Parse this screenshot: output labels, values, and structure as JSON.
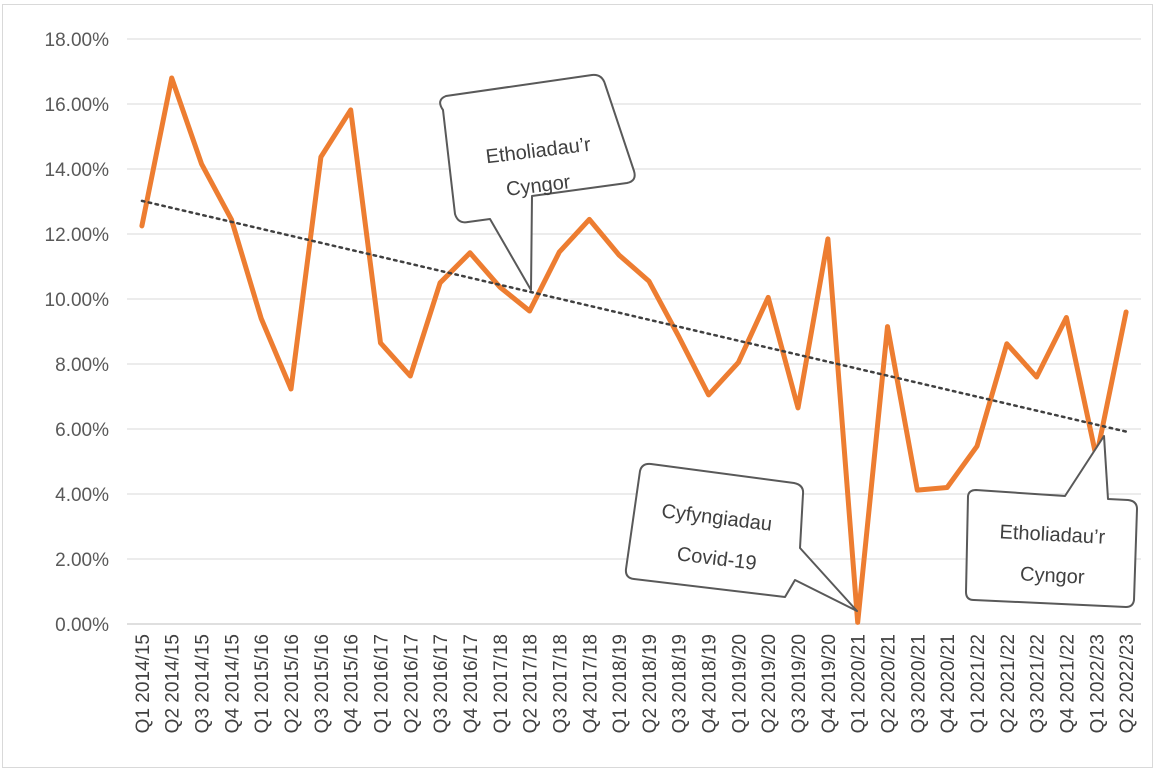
{
  "chart_data": {
    "type": "line",
    "title": "",
    "xlabel": "",
    "ylabel": "",
    "ylim": [
      0,
      0.18
    ],
    "yticks": [
      "0.00%",
      "2.00%",
      "4.00%",
      "6.00%",
      "8.00%",
      "10.00%",
      "12.00%",
      "14.00%",
      "16.00%",
      "18.00%"
    ],
    "grid": "horizontal",
    "legend": "none",
    "categories": [
      "Q1 2014/15",
      "Q2 2014/15",
      "Q3 2014/15",
      "Q4 2014/15",
      "Q1 2015/16",
      "Q2 2015/16",
      "Q3 2015/16",
      "Q4 2015/16",
      "Q1 2016/17",
      "Q2 2016/17",
      "Q3 2016/17",
      "Q4 2016/17",
      "Q1 2017/18",
      "Q2 2017/18",
      "Q3 2017/18",
      "Q4 2017/18",
      "Q1 2018/19",
      "Q2 2018/19",
      "Q3 2018/19",
      "Q4 2018/19",
      "Q1 2019/20",
      "Q2 2019/20",
      "Q3 2019/20",
      "Q4 2019/20",
      "Q1 2020/21",
      "Q2 2020/21",
      "Q3 2020/21",
      "Q4 2020/21",
      "Q1 2021/22",
      "Q2 2021/22",
      "Q3 2021/22",
      "Q4 2021/22",
      "Q1 2022/23",
      "Q2 2022/23"
    ],
    "series": [
      {
        "color": "#ed7d31",
        "values": [
          0.1225,
          0.168,
          0.1415,
          0.1245,
          0.094,
          0.0723,
          0.1437,
          0.1582,
          0.0865,
          0.0763,
          0.105,
          0.1142,
          0.1037,
          0.0963,
          0.1145,
          0.1245,
          0.1135,
          0.1055,
          0.0885,
          0.0705,
          0.0805,
          0.1005,
          0.0665,
          0.1185,
          0.0005,
          0.0915,
          0.0412,
          0.042,
          0.0547,
          0.0862,
          0.076,
          0.0943,
          0.0513,
          0.096
        ]
      }
    ],
    "trendline": {
      "type": "linear",
      "style": "dotted",
      "color": "#404040",
      "start": 0.1302,
      "end": 0.0592
    },
    "annotations": [
      {
        "id": "council-elections-1",
        "lines": [
          "Etholiadau’r",
          "Cyngor"
        ],
        "points_to": "Q2 2017/18"
      },
      {
        "id": "covid-restrictions",
        "lines": [
          "Cyfyngiadau",
          "Covid-19"
        ],
        "points_to": "Q1 2020/21"
      },
      {
        "id": "council-elections-2",
        "lines": [
          "Etholiadau’r",
          "Cyngor"
        ],
        "points_to": "Q1 2022/23"
      }
    ]
  }
}
